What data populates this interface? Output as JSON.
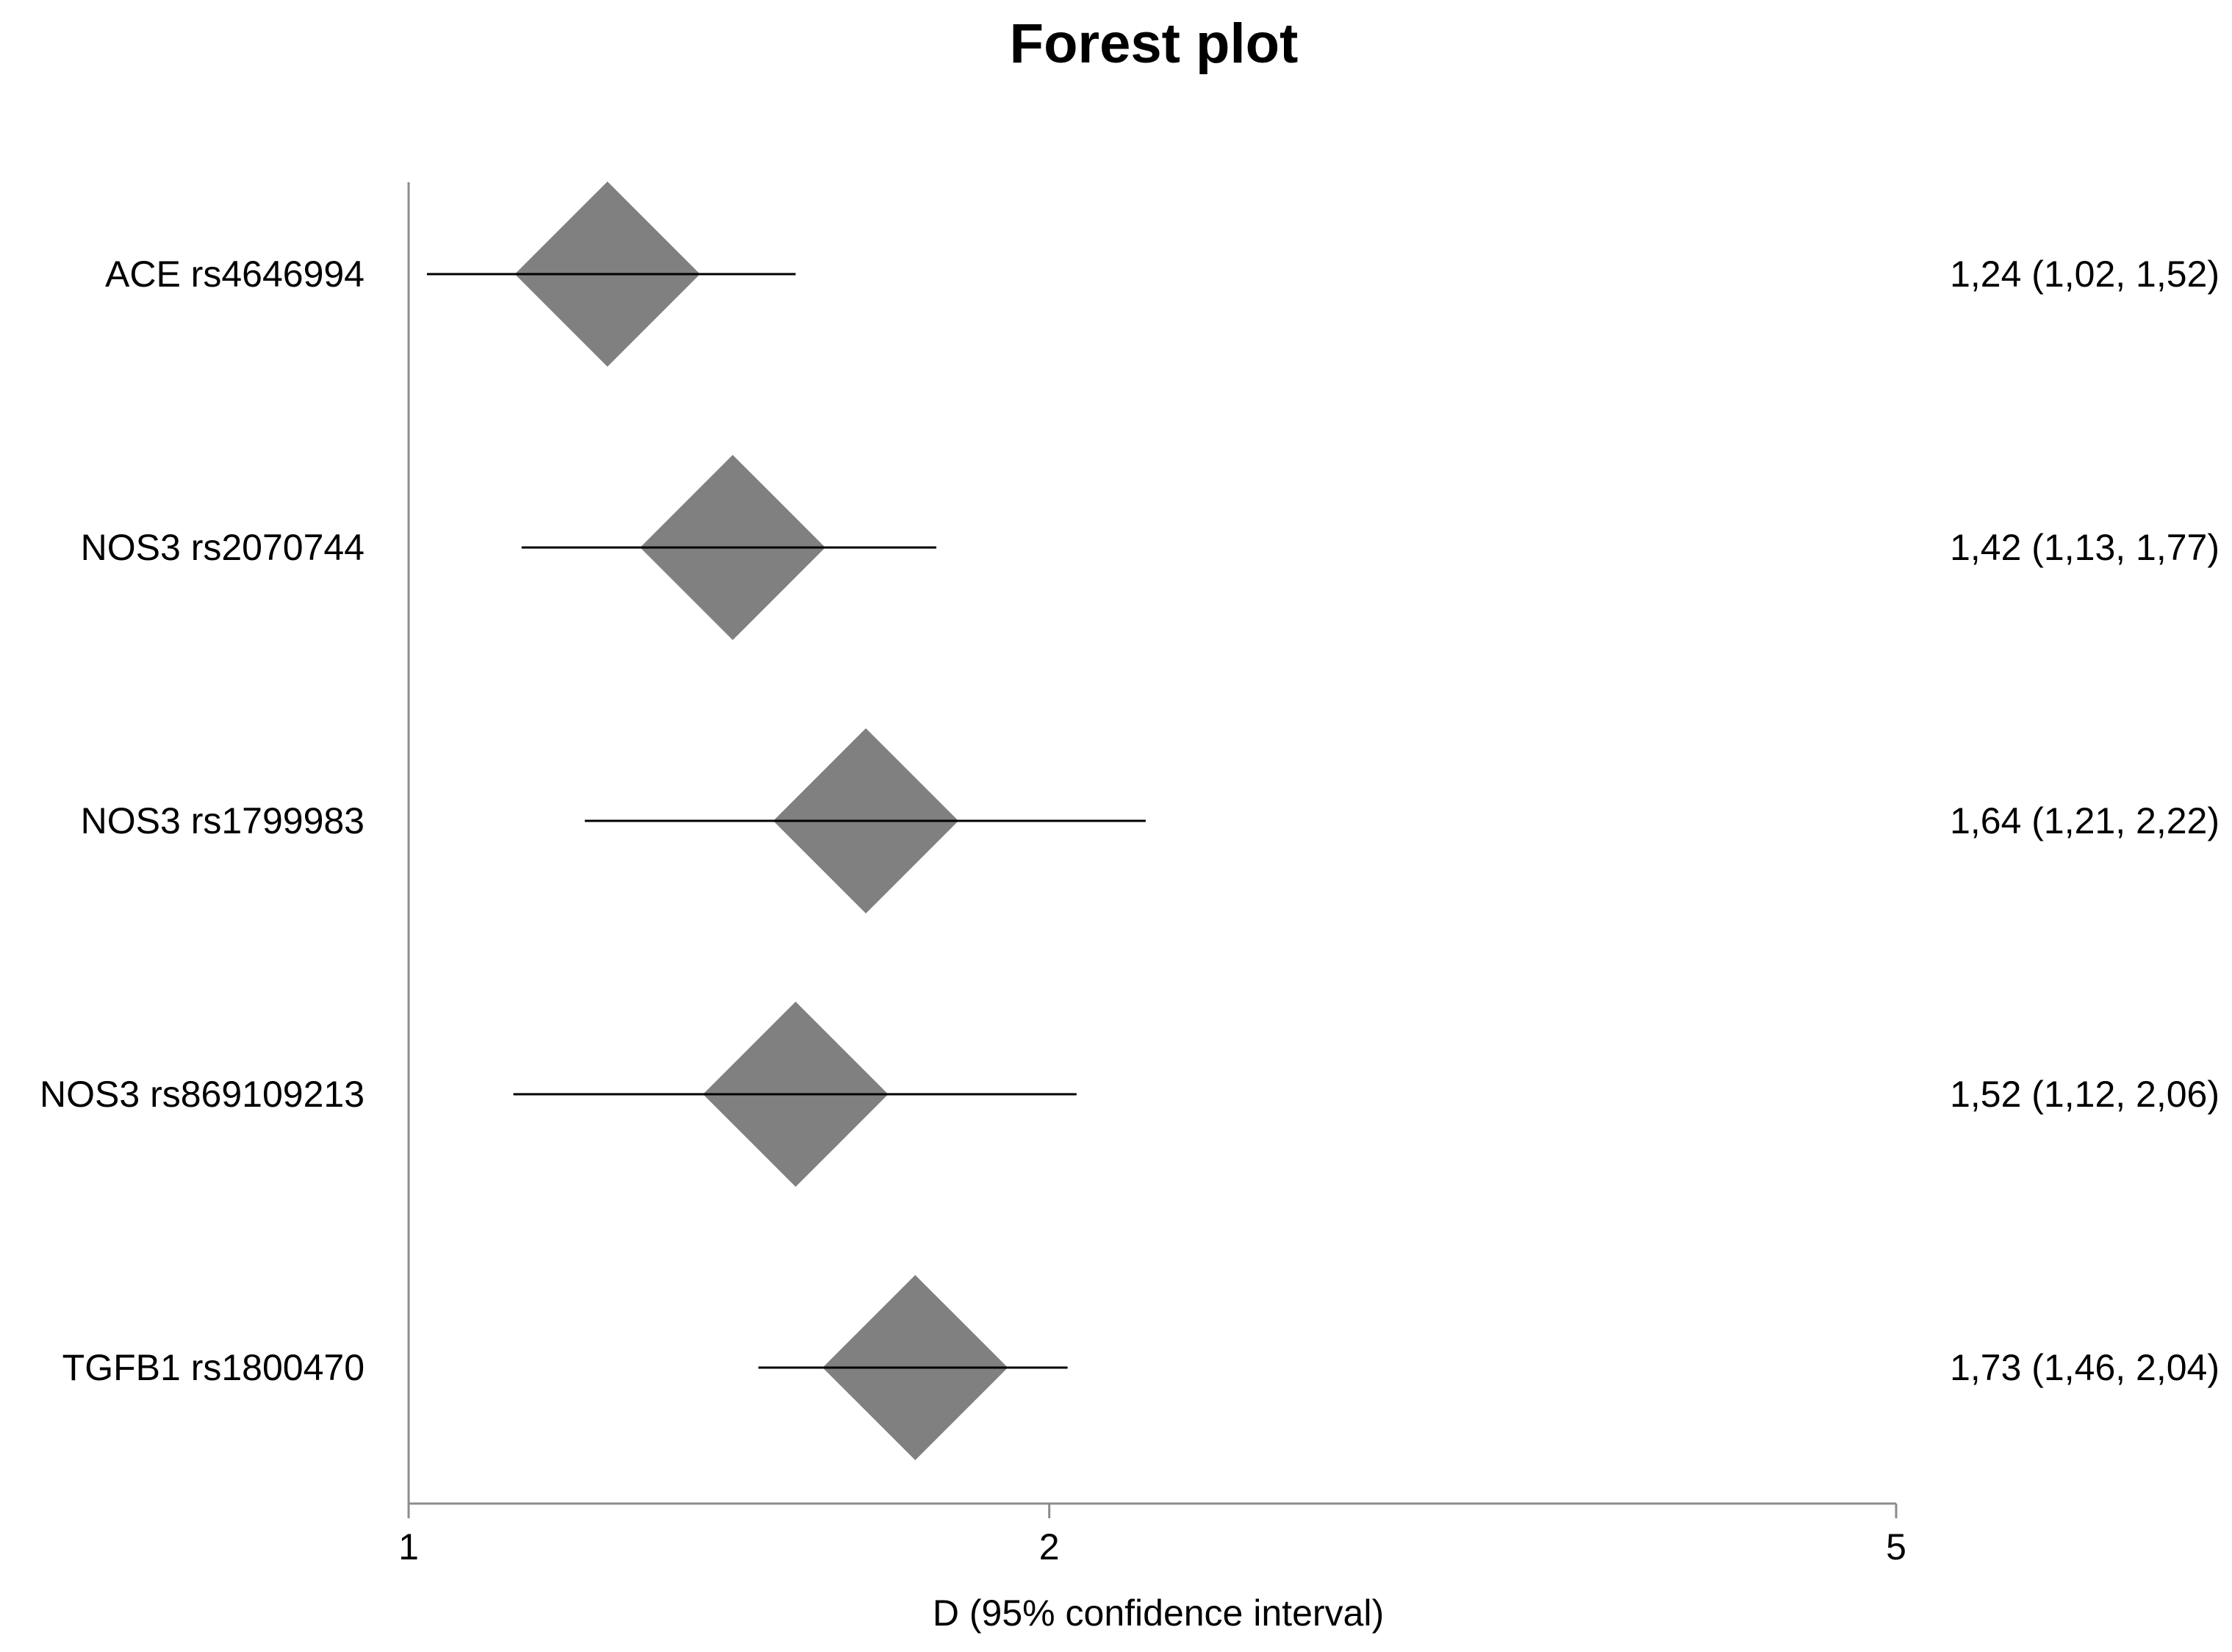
{
  "chart_data": {
    "type": "forest",
    "title": "Forest plot",
    "xlabel": "D (95% confidence interval)",
    "x_scale": "log",
    "xlim": [
      1,
      5
    ],
    "xticks": [
      1,
      2,
      5
    ],
    "xtick_labels": [
      "1",
      "2",
      "5"
    ],
    "rows": [
      {
        "label": "ACE rs4646994",
        "estimate": 1.24,
        "lower": 1.02,
        "upper": 1.52,
        "text": "1,24 (1,02, 1,52)"
      },
      {
        "label": "NOS3 rs2070744",
        "estimate": 1.42,
        "lower": 1.13,
        "upper": 1.77,
        "text": "1,42 (1,13, 1,77)"
      },
      {
        "label": "NOS3 rs1799983",
        "estimate": 1.64,
        "lower": 1.21,
        "upper": 2.22,
        "text": "1,64 (1,21, 2,22)"
      },
      {
        "label": "NOS3 rs869109213",
        "estimate": 1.52,
        "lower": 1.12,
        "upper": 2.06,
        "text": "1,52 (1,12, 2,06)"
      },
      {
        "label": "TGFB1 rs1800470",
        "estimate": 1.73,
        "lower": 1.46,
        "upper": 2.04,
        "text": "1,73 (1,46, 2,04)"
      }
    ],
    "colors": {
      "marker": "#808080",
      "axis": "#8c8c8c",
      "ci_line": "#000000"
    }
  }
}
